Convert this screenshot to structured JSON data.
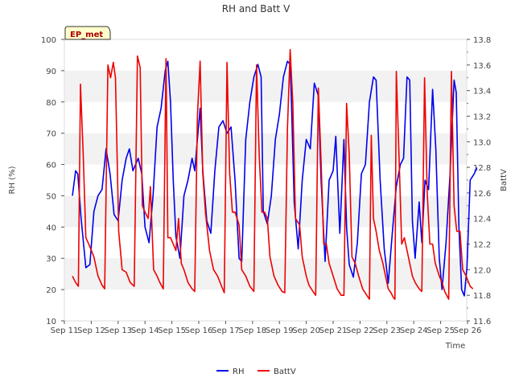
{
  "chart_data": {
    "type": "line",
    "title": "RH and Batt V",
    "badge": "EP_met",
    "xlabel": "Time",
    "ylabel": "RH (%)",
    "y2label": "BattV",
    "x_categories": [
      "Sep 11",
      "Sep 12",
      "Sep 13",
      "Sep 14",
      "Sep 15",
      "Sep 16",
      "Sep 17",
      "Sep 18",
      "Sep 19",
      "Sep 20",
      "Sep 21",
      "Sep 22",
      "Sep 23",
      "Sep 24",
      "Sep 25",
      "Sep 26"
    ],
    "xlim": [
      0,
      15
    ],
    "ylim": [
      10,
      100
    ],
    "y2lim": [
      11.6,
      13.8
    ],
    "yticks": [
      10,
      20,
      30,
      40,
      50,
      60,
      70,
      80,
      90,
      100
    ],
    "y2ticks": [
      "11.6",
      "11.8",
      "12.0",
      "12.2",
      "12.4",
      "12.6",
      "12.8",
      "13.0",
      "13.2",
      "13.4",
      "13.6",
      "13.8"
    ],
    "x_unit": "days since Sep 11",
    "series": [
      {
        "name": "RH",
        "color": "#0000ee",
        "axis": "left",
        "points": [
          [
            0.3,
            50
          ],
          [
            0.42,
            58
          ],
          [
            0.5,
            57
          ],
          [
            0.62,
            43
          ],
          [
            0.8,
            27
          ],
          [
            0.95,
            28
          ],
          [
            1.1,
            45
          ],
          [
            1.25,
            50
          ],
          [
            1.4,
            52
          ],
          [
            1.55,
            65
          ],
          [
            1.7,
            57
          ],
          [
            1.85,
            44
          ],
          [
            2.0,
            42
          ],
          [
            2.15,
            55
          ],
          [
            2.3,
            62
          ],
          [
            2.42,
            65
          ],
          [
            2.55,
            58
          ],
          [
            2.75,
            62
          ],
          [
            2.88,
            57
          ],
          [
            3.0,
            40
          ],
          [
            3.15,
            35
          ],
          [
            3.3,
            50
          ],
          [
            3.45,
            72
          ],
          [
            3.6,
            78
          ],
          [
            3.75,
            90
          ],
          [
            3.85,
            93
          ],
          [
            3.95,
            80
          ],
          [
            4.05,
            55
          ],
          [
            4.15,
            37
          ],
          [
            4.3,
            30
          ],
          [
            4.45,
            50
          ],
          [
            4.6,
            55
          ],
          [
            4.75,
            62
          ],
          [
            4.85,
            58
          ],
          [
            4.95,
            68
          ],
          [
            5.05,
            78
          ],
          [
            5.15,
            58
          ],
          [
            5.3,
            42
          ],
          [
            5.45,
            38
          ],
          [
            5.6,
            58
          ],
          [
            5.75,
            72
          ],
          [
            5.9,
            74
          ],
          [
            6.05,
            70
          ],
          [
            6.2,
            72
          ],
          [
            6.35,
            55
          ],
          [
            6.5,
            30
          ],
          [
            6.6,
            29
          ],
          [
            6.75,
            68
          ],
          [
            6.9,
            80
          ],
          [
            7.05,
            88
          ],
          [
            7.2,
            92
          ],
          [
            7.32,
            88
          ],
          [
            7.4,
            45
          ],
          [
            7.55,
            41
          ],
          [
            7.7,
            50
          ],
          [
            7.85,
            68
          ],
          [
            8.0,
            76
          ],
          [
            8.15,
            88
          ],
          [
            8.3,
            93
          ],
          [
            8.4,
            92
          ],
          [
            8.45,
            80
          ],
          [
            8.55,
            48
          ],
          [
            8.7,
            33
          ],
          [
            8.85,
            55
          ],
          [
            9.0,
            68
          ],
          [
            9.15,
            65
          ],
          [
            9.3,
            86
          ],
          [
            9.45,
            82
          ],
          [
            9.55,
            55
          ],
          [
            9.7,
            29
          ],
          [
            9.85,
            55
          ],
          [
            10.0,
            58
          ],
          [
            10.1,
            69
          ],
          [
            10.25,
            38
          ],
          [
            10.4,
            68
          ],
          [
            10.5,
            40
          ],
          [
            10.6,
            28
          ],
          [
            10.75,
            24
          ],
          [
            10.9,
            35
          ],
          [
            11.05,
            57
          ],
          [
            11.2,
            60
          ],
          [
            11.35,
            80
          ],
          [
            11.5,
            88
          ],
          [
            11.6,
            87
          ],
          [
            11.75,
            55
          ],
          [
            11.9,
            33
          ],
          [
            12.05,
            22
          ],
          [
            12.2,
            38
          ],
          [
            12.35,
            53
          ],
          [
            12.5,
            60
          ],
          [
            12.62,
            62
          ],
          [
            12.75,
            88
          ],
          [
            12.85,
            87
          ],
          [
            12.95,
            42
          ],
          [
            13.05,
            30
          ],
          [
            13.2,
            48
          ],
          [
            13.3,
            35
          ],
          [
            13.42,
            55
          ],
          [
            13.55,
            52
          ],
          [
            13.7,
            84
          ],
          [
            13.82,
            65
          ],
          [
            13.95,
            30
          ],
          [
            14.05,
            20
          ],
          [
            14.2,
            35
          ],
          [
            14.35,
            57
          ],
          [
            14.5,
            87
          ],
          [
            14.58,
            83
          ],
          [
            14.68,
            40
          ],
          [
            14.78,
            20
          ],
          [
            14.88,
            18
          ],
          [
            14.98,
            27
          ],
          [
            15.1,
            55
          ],
          [
            15.25,
            57
          ],
          [
            15.35,
            59
          ]
        ]
      },
      {
        "name": "BattV",
        "color": "#ee0000",
        "axis": "right",
        "points": [
          [
            0.3,
            11.95
          ],
          [
            0.42,
            11.9
          ],
          [
            0.52,
            11.87
          ],
          [
            0.6,
            13.45
          ],
          [
            0.7,
            12.9
          ],
          [
            0.8,
            12.25
          ],
          [
            0.95,
            12.18
          ],
          [
            1.1,
            12.1
          ],
          [
            1.25,
            11.95
          ],
          [
            1.4,
            11.88
          ],
          [
            1.5,
            11.85
          ],
          [
            1.62,
            13.6
          ],
          [
            1.72,
            13.5
          ],
          [
            1.82,
            13.62
          ],
          [
            1.9,
            13.5
          ],
          [
            2.02,
            12.3
          ],
          [
            2.15,
            12.0
          ],
          [
            2.3,
            11.98
          ],
          [
            2.45,
            11.9
          ],
          [
            2.6,
            11.87
          ],
          [
            2.72,
            13.67
          ],
          [
            2.82,
            13.58
          ],
          [
            2.9,
            12.5
          ],
          [
            3.0,
            12.45
          ],
          [
            3.12,
            12.4
          ],
          [
            3.2,
            12.65
          ],
          [
            3.32,
            12.0
          ],
          [
            3.45,
            11.95
          ],
          [
            3.55,
            11.9
          ],
          [
            3.68,
            11.85
          ],
          [
            3.78,
            13.65
          ],
          [
            3.85,
            12.25
          ],
          [
            3.95,
            12.25
          ],
          [
            4.05,
            12.2
          ],
          [
            4.15,
            12.15
          ],
          [
            4.25,
            12.4
          ],
          [
            4.35,
            12.05
          ],
          [
            4.45,
            12.0
          ],
          [
            4.6,
            11.9
          ],
          [
            4.75,
            11.85
          ],
          [
            4.85,
            11.83
          ],
          [
            4.95,
            13.2
          ],
          [
            5.05,
            13.63
          ],
          [
            5.15,
            12.75
          ],
          [
            5.25,
            12.45
          ],
          [
            5.4,
            12.15
          ],
          [
            5.55,
            12.0
          ],
          [
            5.7,
            11.95
          ],
          [
            5.85,
            11.87
          ],
          [
            5.95,
            11.82
          ],
          [
            6.05,
            13.62
          ],
          [
            6.15,
            12.75
          ],
          [
            6.25,
            12.45
          ],
          [
            6.35,
            12.45
          ],
          [
            6.5,
            12.35
          ],
          [
            6.6,
            12.0
          ],
          [
            6.75,
            11.95
          ],
          [
            6.9,
            11.87
          ],
          [
            7.05,
            11.83
          ],
          [
            7.15,
            13.6
          ],
          [
            7.25,
            12.9
          ],
          [
            7.35,
            12.45
          ],
          [
            7.45,
            12.45
          ],
          [
            7.55,
            12.4
          ],
          [
            7.65,
            12.1
          ],
          [
            7.8,
            11.95
          ],
          [
            7.95,
            11.88
          ],
          [
            8.1,
            11.83
          ],
          [
            8.2,
            11.82
          ],
          [
            8.3,
            13.1
          ],
          [
            8.4,
            13.72
          ],
          [
            8.5,
            13.3
          ],
          [
            8.6,
            12.4
          ],
          [
            8.75,
            12.35
          ],
          [
            8.85,
            12.1
          ],
          [
            9.0,
            11.95
          ],
          [
            9.1,
            11.88
          ],
          [
            9.25,
            11.83
          ],
          [
            9.35,
            11.8
          ],
          [
            9.45,
            13.42
          ],
          [
            9.55,
            12.85
          ],
          [
            9.65,
            12.2
          ],
          [
            9.75,
            12.2
          ],
          [
            9.85,
            12.05
          ],
          [
            10.0,
            11.95
          ],
          [
            10.15,
            11.85
          ],
          [
            10.3,
            11.8
          ],
          [
            10.4,
            11.8
          ],
          [
            10.5,
            13.3
          ],
          [
            10.6,
            12.9
          ],
          [
            10.7,
            12.1
          ],
          [
            10.82,
            12.05
          ],
          [
            10.95,
            11.95
          ],
          [
            11.1,
            11.85
          ],
          [
            11.25,
            11.8
          ],
          [
            11.35,
            11.77
          ],
          [
            11.42,
            13.05
          ],
          [
            11.5,
            12.4
          ],
          [
            11.6,
            12.3
          ],
          [
            11.72,
            12.15
          ],
          [
            11.85,
            12.05
          ],
          [
            11.95,
            11.95
          ],
          [
            12.05,
            11.85
          ],
          [
            12.15,
            11.82
          ],
          [
            12.25,
            11.78
          ],
          [
            12.3,
            11.77
          ],
          [
            12.35,
            13.55
          ],
          [
            12.45,
            12.9
          ],
          [
            12.55,
            12.2
          ],
          [
            12.65,
            12.25
          ],
          [
            12.8,
            12.1
          ],
          [
            12.95,
            11.95
          ],
          [
            13.05,
            11.9
          ],
          [
            13.2,
            11.85
          ],
          [
            13.3,
            11.83
          ],
          [
            13.4,
            13.5
          ],
          [
            13.5,
            12.6
          ],
          [
            13.6,
            12.2
          ],
          [
            13.7,
            12.2
          ],
          [
            13.8,
            12.05
          ],
          [
            13.95,
            11.95
          ],
          [
            14.05,
            11.9
          ],
          [
            14.15,
            11.83
          ],
          [
            14.3,
            11.77
          ],
          [
            14.4,
            13.55
          ],
          [
            14.5,
            12.5
          ],
          [
            14.6,
            12.3
          ],
          [
            14.72,
            12.3
          ],
          [
            14.82,
            12.0
          ],
          [
            14.95,
            11.95
          ],
          [
            15.1,
            11.87
          ],
          [
            15.2,
            11.85
          ]
        ]
      }
    ],
    "legend": {
      "position": "bottom-center",
      "entries": [
        "RH",
        "BattV"
      ]
    },
    "grid": "horizontal bands"
  }
}
